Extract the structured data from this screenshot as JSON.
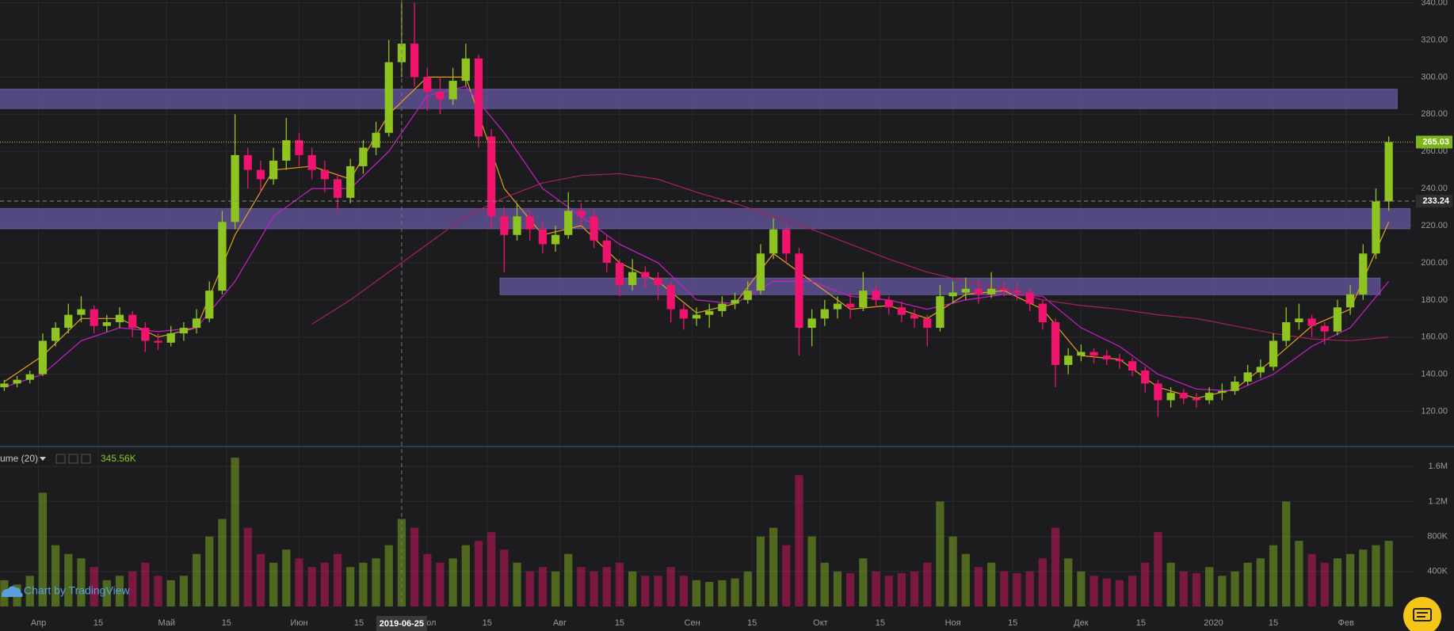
{
  "chart_data": {
    "type": "candlestick",
    "x": [
      "2019-03-24",
      "2019-03-27",
      "2019-03-30",
      "2019-04-02",
      "2019-04-05",
      "2019-04-08",
      "2019-04-11",
      "2019-04-14",
      "2019-04-17",
      "2019-04-20",
      "2019-04-23",
      "2019-04-26",
      "2019-04-29",
      "2019-05-02",
      "2019-05-05",
      "2019-05-08",
      "2019-05-11",
      "2019-05-14",
      "2019-05-17",
      "2019-05-20",
      "2019-05-23",
      "2019-05-26",
      "2019-05-29",
      "2019-06-01",
      "2019-06-04",
      "2019-06-07",
      "2019-06-10",
      "2019-06-13",
      "2019-06-16",
      "2019-06-19",
      "2019-06-22",
      "2019-06-25",
      "2019-06-28",
      "2019-07-01",
      "2019-07-04",
      "2019-07-07",
      "2019-07-10",
      "2019-07-13",
      "2019-07-16",
      "2019-07-19",
      "2019-07-22",
      "2019-07-25",
      "2019-07-28",
      "2019-07-31",
      "2019-08-03",
      "2019-08-06",
      "2019-08-09",
      "2019-08-12",
      "2019-08-15",
      "2019-08-18",
      "2019-08-21",
      "2019-08-24",
      "2019-08-27",
      "2019-08-30",
      "2019-09-02",
      "2019-09-05",
      "2019-09-08",
      "2019-09-11",
      "2019-09-14",
      "2019-09-17",
      "2019-09-20",
      "2019-09-23",
      "2019-09-26",
      "2019-09-29",
      "2019-10-02",
      "2019-10-05",
      "2019-10-08",
      "2019-10-11",
      "2019-10-14",
      "2019-10-17",
      "2019-10-20",
      "2019-10-23",
      "2019-10-26",
      "2019-10-29",
      "2019-11-01",
      "2019-11-04",
      "2019-11-07",
      "2019-11-10",
      "2019-11-13",
      "2019-11-16",
      "2019-11-19",
      "2019-11-22",
      "2019-11-25",
      "2019-11-28",
      "2019-12-01",
      "2019-12-04",
      "2019-12-07",
      "2019-12-10",
      "2019-12-13",
      "2019-12-16",
      "2019-12-19",
      "2019-12-22",
      "2019-12-25",
      "2019-12-28",
      "2019-12-31",
      "2020-01-03",
      "2020-01-06",
      "2020-01-09",
      "2020-01-12",
      "2020-01-15",
      "2020-01-18",
      "2020-01-21",
      "2020-01-24",
      "2020-01-27",
      "2020-01-30",
      "2020-02-02",
      "2020-02-05",
      "2020-02-08",
      "2020-02-11"
    ],
    "ohlc": [
      [
        133,
        137,
        131,
        135
      ],
      [
        135,
        139,
        133,
        137
      ],
      [
        137,
        142,
        135,
        140
      ],
      [
        140,
        162,
        139,
        158
      ],
      [
        158,
        168,
        155,
        165
      ],
      [
        165,
        178,
        162,
        172
      ],
      [
        172,
        182,
        168,
        175
      ],
      [
        175,
        177,
        162,
        166
      ],
      [
        166,
        172,
        163,
        168
      ],
      [
        168,
        176,
        165,
        172
      ],
      [
        172,
        174,
        160,
        165
      ],
      [
        165,
        168,
        152,
        158
      ],
      [
        158,
        162,
        153,
        157
      ],
      [
        157,
        166,
        155,
        162
      ],
      [
        162,
        168,
        158,
        165
      ],
      [
        165,
        175,
        162,
        170
      ],
      [
        170,
        190,
        168,
        185
      ],
      [
        185,
        228,
        183,
        222
      ],
      [
        222,
        280,
        218,
        258
      ],
      [
        258,
        262,
        240,
        250
      ],
      [
        250,
        255,
        238,
        245
      ],
      [
        245,
        262,
        242,
        255
      ],
      [
        255,
        278,
        250,
        266
      ],
      [
        266,
        270,
        252,
        258
      ],
      [
        258,
        262,
        245,
        250
      ],
      [
        250,
        255,
        238,
        245
      ],
      [
        245,
        248,
        228,
        235
      ],
      [
        235,
        256,
        232,
        252
      ],
      [
        252,
        266,
        248,
        262
      ],
      [
        262,
        276,
        258,
        270
      ],
      [
        270,
        320,
        268,
        308
      ],
      [
        308,
        340,
        300,
        318
      ],
      [
        318,
        340,
        295,
        300
      ],
      [
        300,
        305,
        282,
        292
      ],
      [
        292,
        300,
        280,
        288
      ],
      [
        288,
        305,
        285,
        298
      ],
      [
        298,
        318,
        295,
        310
      ],
      [
        310,
        312,
        262,
        268
      ],
      [
        268,
        272,
        218,
        225
      ],
      [
        225,
        230,
        195,
        215
      ],
      [
        215,
        232,
        212,
        225
      ],
      [
        225,
        228,
        212,
        218
      ],
      [
        218,
        222,
        205,
        210
      ],
      [
        210,
        220,
        206,
        215
      ],
      [
        215,
        238,
        213,
        228
      ],
      [
        228,
        232,
        220,
        225
      ],
      [
        225,
        228,
        208,
        212
      ],
      [
        212,
        215,
        195,
        200
      ],
      [
        200,
        202,
        182,
        188
      ],
      [
        188,
        202,
        185,
        195
      ],
      [
        195,
        198,
        186,
        192
      ],
      [
        192,
        195,
        180,
        188
      ],
      [
        188,
        190,
        168,
        175
      ],
      [
        175,
        178,
        164,
        170
      ],
      [
        170,
        176,
        166,
        172
      ],
      [
        172,
        178,
        165,
        174
      ],
      [
        174,
        182,
        171,
        178
      ],
      [
        178,
        184,
        175,
        180
      ],
      [
        180,
        190,
        178,
        185
      ],
      [
        185,
        210,
        183,
        205
      ],
      [
        205,
        224,
        202,
        218
      ],
      [
        218,
        220,
        200,
        205
      ],
      [
        205,
        208,
        150,
        165
      ],
      [
        165,
        175,
        155,
        170
      ],
      [
        170,
        180,
        166,
        175
      ],
      [
        175,
        182,
        170,
        178
      ],
      [
        178,
        184,
        170,
        176
      ],
      [
        176,
        195,
        174,
        185
      ],
      [
        185,
        188,
        176,
        180
      ],
      [
        180,
        182,
        172,
        176
      ],
      [
        176,
        179,
        168,
        172
      ],
      [
        172,
        175,
        165,
        170
      ],
      [
        170,
        172,
        155,
        165
      ],
      [
        165,
        188,
        163,
        182
      ],
      [
        182,
        190,
        178,
        184
      ],
      [
        184,
        192,
        180,
        186
      ],
      [
        186,
        190,
        178,
        183
      ],
      [
        183,
        195,
        181,
        186
      ],
      [
        186,
        190,
        182,
        185
      ],
      [
        185,
        189,
        180,
        184
      ],
      [
        184,
        186,
        174,
        178
      ],
      [
        178,
        180,
        164,
        168
      ],
      [
        168,
        170,
        133,
        145
      ],
      [
        145,
        154,
        140,
        150
      ],
      [
        150,
        156,
        147,
        152
      ],
      [
        152,
        154,
        146,
        150
      ],
      [
        150,
        153,
        145,
        148
      ],
      [
        148,
        151,
        143,
        147
      ],
      [
        147,
        149,
        139,
        142
      ],
      [
        142,
        144,
        130,
        135
      ],
      [
        135,
        137,
        117,
        126
      ],
      [
        126,
        133,
        122,
        130
      ],
      [
        130,
        132,
        124,
        127
      ],
      [
        127,
        130,
        122,
        126
      ],
      [
        126,
        133,
        124,
        130
      ],
      [
        130,
        135,
        126,
        131
      ],
      [
        131,
        139,
        129,
        136
      ],
      [
        136,
        145,
        134,
        141
      ],
      [
        141,
        148,
        138,
        144
      ],
      [
        144,
        162,
        142,
        158
      ],
      [
        158,
        176,
        155,
        168
      ],
      [
        168,
        178,
        164,
        170
      ],
      [
        170,
        172,
        160,
        166
      ],
      [
        166,
        168,
        156,
        163
      ],
      [
        163,
        180,
        161,
        176
      ],
      [
        176,
        188,
        172,
        183
      ],
      [
        183,
        210,
        180,
        205
      ],
      [
        205,
        240,
        202,
        233
      ],
      [
        233,
        268,
        228,
        265
      ]
    ],
    "volume": [
      300000,
      250000,
      350000,
      1300000,
      700000,
      600000,
      550000,
      450000,
      300000,
      350000,
      400000,
      500000,
      350000,
      300000,
      350000,
      600000,
      800000,
      1000000,
      1700000,
      900000,
      600000,
      500000,
      650000,
      550000,
      450000,
      500000,
      600000,
      450000,
      500000,
      550000,
      700000,
      1000000,
      900000,
      600000,
      500000,
      550000,
      700000,
      750000,
      850000,
      650000,
      500000,
      400000,
      450000,
      400000,
      600000,
      450000,
      400000,
      450000,
      500000,
      400000,
      350000,
      350000,
      450000,
      350000,
      300000,
      280000,
      300000,
      320000,
      400000,
      800000,
      900000,
      700000,
      1500000,
      800000,
      500000,
      400000,
      380000,
      550000,
      400000,
      350000,
      380000,
      400000,
      500000,
      1200000,
      800000,
      600000,
      450000,
      500000,
      400000,
      380000,
      400000,
      550000,
      900000,
      550000,
      400000,
      350000,
      320000,
      300000,
      350000,
      500000,
      850000,
      500000,
      400000,
      380000,
      450000,
      350000,
      400000,
      500000,
      550000,
      700000,
      1200000,
      750000,
      600000,
      500000,
      550000,
      600000,
      650000,
      700000,
      750000
    ],
    "xlim": [
      "2019-03-23",
      "2020-02-17"
    ],
    "ylim": [
      101.5,
      341.5
    ],
    "yticks": [
      {
        "value": 120,
        "label": "120.00"
      },
      {
        "value": 140,
        "label": "140.00"
      },
      {
        "value": 160,
        "label": "160.00"
      },
      {
        "value": 180,
        "label": "180.00"
      },
      {
        "value": 200,
        "label": "200.00"
      },
      {
        "value": 220,
        "label": "220.00"
      },
      {
        "value": 240,
        "label": "240.00"
      },
      {
        "value": 260,
        "label": "260.00"
      },
      {
        "value": 280,
        "label": "280.00"
      },
      {
        "value": 300,
        "label": "300.00"
      },
      {
        "value": 320,
        "label": "320.00"
      },
      {
        "value": 340,
        "label": "340.00"
      }
    ],
    "volume_lim": [
      0,
      1810000
    ],
    "volume_ticks": [
      {
        "value": 400000,
        "label": "400K"
      },
      {
        "value": 800000,
        "label": "800K"
      },
      {
        "value": 1200000,
        "label": "1.2M"
      },
      {
        "value": 1600000,
        "label": "1.6M"
      }
    ],
    "xticks": [
      {
        "value": "2019-04-01",
        "label": "Апр"
      },
      {
        "value": "2019-04-15",
        "label": "15"
      },
      {
        "value": "2019-05-01",
        "label": "Май"
      },
      {
        "value": "2019-05-15",
        "label": "15"
      },
      {
        "value": "2019-06-01",
        "label": "Июн"
      },
      {
        "value": "2019-06-15",
        "label": "15"
      },
      {
        "value": "2019-07-01",
        "label": "Июл"
      },
      {
        "value": "2019-07-15",
        "label": "15"
      },
      {
        "value": "2019-08-01",
        "label": "Авг"
      },
      {
        "value": "2019-08-15",
        "label": "15"
      },
      {
        "value": "2019-09-01",
        "label": "Сен"
      },
      {
        "value": "2019-09-15",
        "label": "15"
      },
      {
        "value": "2019-10-01",
        "label": "Окт"
      },
      {
        "value": "2019-10-15",
        "label": "15"
      },
      {
        "value": "2019-11-01",
        "label": "Ноя"
      },
      {
        "value": "2019-11-15",
        "label": "15"
      },
      {
        "value": "2019-12-01",
        "label": "Дек"
      },
      {
        "value": "2019-12-15",
        "label": "15"
      },
      {
        "value": "2020-01-01",
        "label": "2020"
      },
      {
        "value": "2020-01-15",
        "label": "15"
      },
      {
        "value": "2020-02-01",
        "label": "Фев"
      }
    ],
    "up_color": "#8fc31f",
    "down_color": "#f0146e",
    "indicator_x": [
      "2019-03-24",
      "2019-04-02",
      "2019-04-11",
      "2019-04-20",
      "2019-04-29",
      "2019-05-08",
      "2019-05-17",
      "2019-05-26",
      "2019-06-04",
      "2019-06-13",
      "2019-06-22",
      "2019-07-01",
      "2019-07-10",
      "2019-07-19",
      "2019-07-28",
      "2019-08-06",
      "2019-08-15",
      "2019-08-24",
      "2019-09-02",
      "2019-09-11",
      "2019-09-20",
      "2019-09-29",
      "2019-10-08",
      "2019-10-17",
      "2019-10-26",
      "2019-11-04",
      "2019-11-13",
      "2019-11-22",
      "2019-12-01",
      "2019-12-10",
      "2019-12-19",
      "2019-12-28",
      "2020-01-06",
      "2020-01-15",
      "2020-01-24",
      "2020-02-02",
      "2020-02-11"
    ],
    "indicators": [
      {
        "color": "#e3a21a",
        "values": [
          136,
          150,
          170,
          170,
          160,
          165,
          215,
          250,
          252,
          245,
          280,
          300,
          300,
          240,
          215,
          220,
          200,
          190,
          173,
          178,
          205,
          190,
          175,
          177,
          170,
          183,
          185,
          175,
          150,
          148,
          133,
          127,
          132,
          148,
          166,
          175,
          222
        ]
      },
      {
        "color": "#c51fc9",
        "values": [
          133,
          140,
          158,
          165,
          163,
          165,
          190,
          225,
          240,
          240,
          260,
          290,
          295,
          270,
          240,
          225,
          210,
          200,
          180,
          178,
          190,
          190,
          182,
          180,
          175,
          180,
          183,
          182,
          165,
          155,
          140,
          132,
          131,
          140,
          155,
          165,
          190
        ]
      },
      {
        "color": "#a8205a",
        "values": [
          null,
          null,
          null,
          null,
          null,
          null,
          null,
          null,
          167,
          180,
          195,
          210,
          225,
          235,
          243,
          247,
          248,
          245,
          238,
          232,
          225,
          218,
          210,
          202,
          195,
          190,
          186,
          180,
          177,
          175,
          172,
          170,
          166,
          162,
          159,
          158,
          160
        ]
      }
    ],
    "zones": [
      {
        "from": "2019-03-01",
        "to": "2020-02-13",
        "low": 283,
        "high": 293.5
      },
      {
        "from": "2019-03-01",
        "to": "2020-02-16",
        "low": 218.3,
        "high": 229.2
      },
      {
        "from": "2019-07-18",
        "to": "2020-02-09",
        "low": 182.8,
        "high": 191.8
      }
    ],
    "zone_color": "#6b5aa8",
    "last_price": 265.03,
    "crosshair": {
      "x": "2019-06-25",
      "price": 233.24,
      "volume": {
        "value": 345560,
        "label": "345.56K"
      }
    },
    "volume_legend": "ume (20)",
    "watermark": "Chart by TradingView",
    "grid": true
  }
}
